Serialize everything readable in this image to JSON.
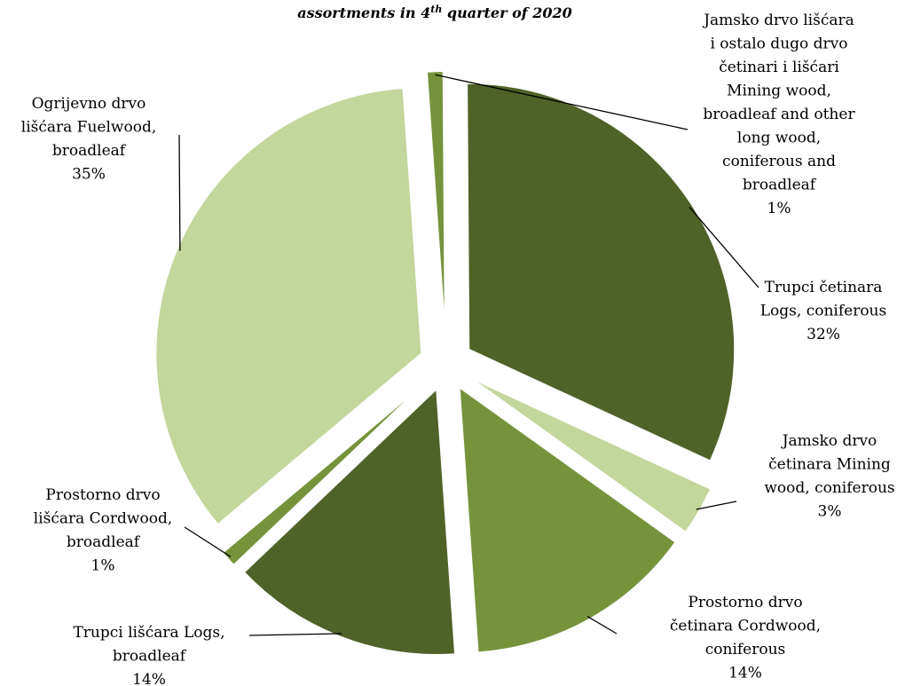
{
  "chart_data": {
    "type": "pie",
    "title": "assortments in 4th quarter of 2020",
    "title_parts": {
      "pre": "assortments in 4",
      "sup": "th",
      "post": " quarter of 2020"
    },
    "slices": [
      {
        "name": "Jamsko drvo lišćara i ostalo dugo drvo četinari i lišćari Mining wood, broadleaf and other long wood, coniferous and broadleaf",
        "value": 1,
        "pct_label": "1%",
        "color": "#76933c",
        "label_lines": [
          "Jamsko drvo lišćara",
          "i ostalo dugo drvo",
          "četinari i lišćari",
          "Mining wood,",
          "broadleaf and other",
          "long wood,",
          "coniferous and",
          "broadleaf",
          "1%"
        ]
      },
      {
        "name": "Trupci četinara Logs, coniferous",
        "value": 32,
        "pct_label": "32%",
        "color": "#4f6228",
        "label_lines": [
          "Trupci četinara",
          "Logs, coniferous",
          "32%"
        ]
      },
      {
        "name": "Jamsko drvo četinara Mining wood, coniferous",
        "value": 3,
        "pct_label": "3%",
        "color": "#c3d69b",
        "label_lines": [
          "Jamsko drvo",
          "četinara Mining",
          "wood, coniferous",
          "3%"
        ]
      },
      {
        "name": "Prostorno drvo četinara Cordwood, coniferous",
        "value": 14,
        "pct_label": "14%",
        "color": "#76933c",
        "label_lines": [
          "Prostorno drvo",
          "četinara Cordwood,",
          "coniferous",
          "14%"
        ]
      },
      {
        "name": "Trupci lišćara Logs, broadleaf",
        "value": 14,
        "pct_label": "14%",
        "color": "#4f6228",
        "label_lines": [
          "Trupci lišćara Logs,",
          "broadleaf",
          "14%"
        ]
      },
      {
        "name": "Prostorno drvo lišćara Cordwood, broadleaf",
        "value": 1,
        "pct_label": "1%",
        "color": "#76933c",
        "label_lines": [
          "Prostorno drvo",
          "lišćara Cordwood,",
          "broadleaf",
          "1%"
        ]
      },
      {
        "name": "Ogrijevno drvo lišćara Fuelwood, broadleaf",
        "value": 35,
        "pct_label": "35%",
        "color": "#c3d69b",
        "label_lines": [
          "Ogrijevno drvo",
          "lišćara  Fuelwood,",
          "broadleaf",
          "35%"
        ]
      }
    ]
  }
}
